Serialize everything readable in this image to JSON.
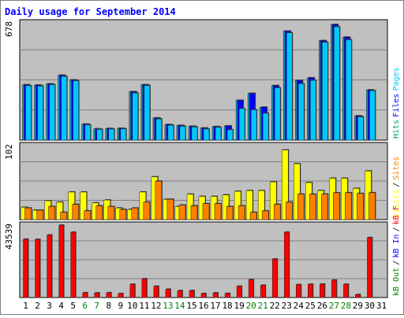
{
  "chart_data": {
    "type": "bar",
    "title": "Daily usage for September 2014",
    "categories": [
      "1",
      "2",
      "3",
      "4",
      "5",
      "6",
      "7",
      "8",
      "9",
      "10",
      "11",
      "12",
      "13",
      "14",
      "15",
      "16",
      "17",
      "18",
      "19",
      "20",
      "21",
      "22",
      "23",
      "24",
      "25",
      "26",
      "27",
      "28",
      "29",
      "30",
      "31"
    ],
    "weekend_days": [
      "6",
      "7",
      "13",
      "14",
      "20",
      "21",
      "27",
      "28"
    ],
    "panels": [
      {
        "id": "top",
        "max_label": "678",
        "ymax": 678,
        "series": [
          {
            "name": "Hits",
            "color": "#00a0c0",
            "values": [
              320,
              318,
              325,
              375,
              348,
              92,
              65,
              67,
              68,
              280,
              320,
              128,
              90,
              85,
              80,
              70,
              78,
              82,
              230,
              270,
              190,
              315,
              630,
              345,
              360,
              575,
              668,
              595,
              140,
              290,
              null
            ]
          },
          {
            "name": "Files",
            "color": "#0000ff",
            "values": [
              320,
              318,
              325,
              375,
              348,
              92,
              65,
              67,
              68,
              280,
              320,
              128,
              90,
              85,
              80,
              70,
              78,
              82,
              230,
              270,
              190,
              315,
              630,
              345,
              360,
              575,
              668,
              595,
              140,
              290,
              null
            ]
          },
          {
            "name": "Pages",
            "color": "#00c8ff",
            "values": [
              314,
              312,
              320,
              368,
              343,
              88,
              62,
              64,
              65,
              272,
              315,
              122,
              86,
              80,
              76,
              64,
              74,
              60,
              182,
              175,
              155,
              302,
              620,
              326,
              345,
              565,
              655,
              580,
              134,
              286,
              null
            ]
          }
        ],
        "axis_labels": [
          {
            "text": "Hits",
            "color": "#00a060"
          },
          {
            "text": "Files",
            "color": "#0000ff"
          },
          {
            "text": "Pages",
            "color": "#00c8ff"
          }
        ]
      },
      {
        "id": "middle",
        "max_label": "102",
        "ymax": 102,
        "series": [
          {
            "name": "Visits",
            "color": "#ffff00",
            "values": [
              17,
              13,
              26,
              24,
              38,
              38,
              23,
              27,
              16,
              14,
              38,
              59,
              28,
              18,
              35,
              32,
              32,
              34,
              39,
              40,
              40,
              52,
              96,
              77,
              51,
              40,
              57,
              57,
              43,
              67,
              null
            ]
          },
          {
            "name": "Sites",
            "color": "#ff8000",
            "values": [
              16,
              13,
              18,
              10,
              21,
              12,
              19,
              18,
              14,
              16,
              24,
              53,
              28,
              20,
              19,
              22,
              22,
              18,
              19,
              10,
              12,
              21,
              24,
              35,
              35,
              35,
              37,
              37,
              36,
              37,
              null
            ]
          }
        ],
        "axis_labels": [
          {
            "text": "Visits",
            "color": "#ffff00"
          },
          {
            "text": "/",
            "color": "#000000"
          },
          {
            "text": "Sites",
            "color": "#ff8000"
          }
        ]
      },
      {
        "id": "bottom",
        "max_label": "43539",
        "ymax": 43539,
        "series": [
          {
            "name": "kB F",
            "color": "#ff0000",
            "values": [
              35100,
              35000,
              37600,
              43500,
              39300,
              2900,
              2800,
              2900,
              2400,
              8000,
              11300,
              6800,
              5000,
              4200,
              4200,
              2400,
              2800,
              2500,
              6800,
              10800,
              7400,
              23200,
              39300,
              7800,
              8000,
              8100,
              10500,
              8000,
              1800,
              36100,
              null
            ]
          }
        ],
        "axis_labels": [
          {
            "text": "kB Out",
            "color": "#008000"
          },
          {
            "text": "/",
            "color": "#000000"
          },
          {
            "text": "kB In",
            "color": "#0000ff"
          },
          {
            "text": "/",
            "color": "#000000"
          },
          {
            "text": "kB F",
            "color": "#ff0000"
          }
        ]
      }
    ],
    "colors": {
      "title": "#0000ff",
      "plot_bg": "#c0c0c0",
      "weekday_label": "#000080",
      "weekend_label": "#008000",
      "frame": "#000000",
      "gridline": "#808080"
    }
  }
}
